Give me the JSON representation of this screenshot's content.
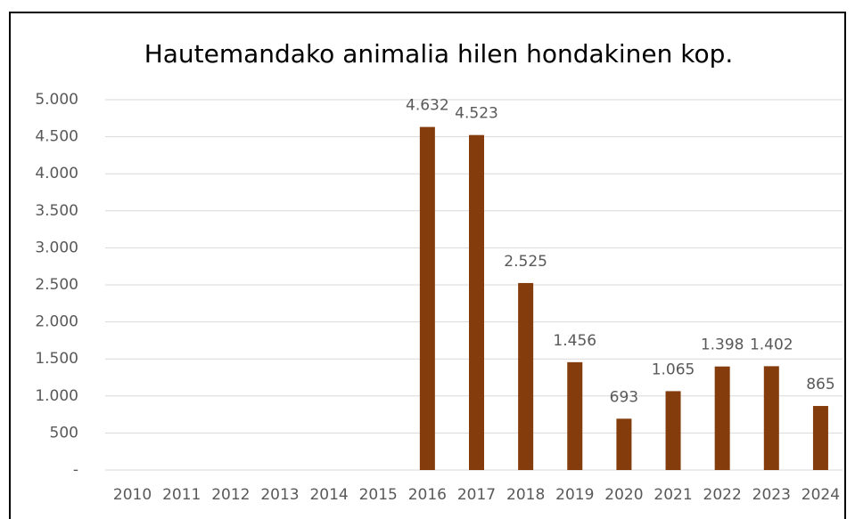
{
  "chart_data": {
    "type": "bar",
    "title": "Hautemandako animalia hilen hondakinen kop.",
    "categories": [
      "2010",
      "2011",
      "2012",
      "2013",
      "2014",
      "2015",
      "2016",
      "2017",
      "2018",
      "2019",
      "2020",
      "2021",
      "2022",
      "2023",
      "2024"
    ],
    "values": [
      null,
      null,
      null,
      null,
      null,
      null,
      4632,
      4523,
      2525,
      1456,
      693,
      1065,
      1398,
      1402,
      865
    ],
    "value_labels": [
      null,
      null,
      null,
      null,
      null,
      null,
      "4.632",
      "4.523",
      "2.525",
      "1.456",
      "693",
      "1.065",
      "1.398",
      "1.402",
      "865"
    ],
    "color": "#843c0c",
    "ylim": [
      0,
      5000
    ],
    "yticks": [
      {
        "value": 0,
        "label": "-"
      },
      500,
      {
        "value": 1000,
        "label": "1.000"
      },
      {
        "value": 1500,
        "label": "1.500"
      },
      {
        "value": 2000,
        "label": "2.000"
      },
      {
        "value": 2500,
        "label": "2.500"
      },
      {
        "value": 3000,
        "label": "3.000"
      },
      {
        "value": 3500,
        "label": "3.500"
      },
      {
        "value": 4000,
        "label": "4.000"
      },
      {
        "value": 4500,
        "label": "4.500"
      },
      {
        "value": 5000,
        "label": "5.000"
      }
    ],
    "grid": true
  }
}
